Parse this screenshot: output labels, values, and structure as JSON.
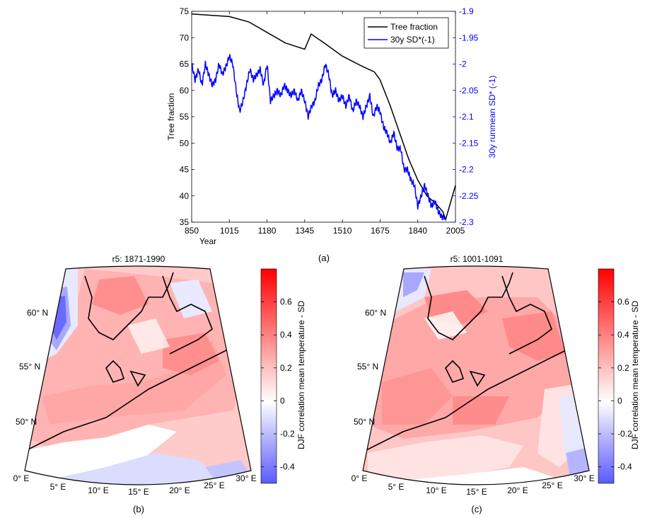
{
  "chart_data": [
    {
      "type": "line",
      "panel_label": "(a)",
      "xlabel": "Year",
      "ylabel": "Tree fraction",
      "ylabel_right": "30y runmean SD* (-1)",
      "xlim": [
        850,
        2005
      ],
      "ylim": [
        35,
        75
      ],
      "ylim_right": [
        -2.3,
        -1.9
      ],
      "x_ticks": [
        850,
        1015,
        1180,
        1345,
        1510,
        1675,
        1840,
        2005
      ],
      "y_ticks": [
        35,
        40,
        45,
        50,
        55,
        60,
        65,
        70,
        75
      ],
      "y_ticks_right": [
        -1.9,
        -1.95,
        -2,
        -2.05,
        -2.1,
        -2.15,
        -2.2,
        -2.25,
        -2.3
      ],
      "legend_position": "top-right",
      "series": [
        {
          "name": "Tree fraction",
          "color": "#000000",
          "axis": "left",
          "x": [
            850,
            1015,
            1100,
            1180,
            1260,
            1345,
            1373,
            1430,
            1510,
            1600,
            1650,
            1675,
            1720,
            1760,
            1800,
            1840,
            1880,
            1920,
            1950,
            1962,
            2005
          ],
          "y": [
            74.5,
            74.0,
            73.0,
            71.0,
            69.0,
            67.8,
            70.7,
            69.0,
            66.5,
            64.5,
            63.5,
            62.0,
            57.0,
            52.0,
            47.0,
            43.0,
            40.0,
            38.5,
            37.0,
            35.5,
            42.0
          ]
        },
        {
          "name": "30y SD*(-1)",
          "color": "#0000ff",
          "axis": "right",
          "x": [
            850,
            865,
            880,
            895,
            910,
            925,
            940,
            955,
            970,
            985,
            1000,
            1015,
            1030,
            1045,
            1060,
            1075,
            1090,
            1105,
            1120,
            1135,
            1150,
            1165,
            1180,
            1195,
            1210,
            1225,
            1240,
            1255,
            1270,
            1285,
            1300,
            1315,
            1330,
            1345,
            1360,
            1375,
            1390,
            1405,
            1420,
            1435,
            1450,
            1465,
            1480,
            1495,
            1510,
            1525,
            1540,
            1555,
            1570,
            1585,
            1600,
            1615,
            1630,
            1645,
            1660,
            1675,
            1690,
            1705,
            1720,
            1735,
            1750,
            1765,
            1780,
            1795,
            1810,
            1825,
            1840,
            1855,
            1870,
            1885,
            1900,
            1915,
            1930,
            1945,
            1960
          ],
          "y": [
            -2.0,
            -2.03,
            -2.01,
            -2.04,
            -2.0,
            -2.02,
            -2.04,
            -2.03,
            -2.0,
            -2.02,
            -2.005,
            -1.985,
            -2.0,
            -2.05,
            -2.09,
            -2.07,
            -2.04,
            -2.01,
            -2.03,
            -2.02,
            -2.01,
            -2.04,
            -2.0,
            -2.07,
            -2.06,
            -2.05,
            -2.06,
            -2.04,
            -2.05,
            -2.06,
            -2.05,
            -2.07,
            -2.05,
            -2.07,
            -2.1,
            -2.08,
            -2.07,
            -2.04,
            -2.03,
            -2.0,
            -2.02,
            -2.06,
            -2.05,
            -2.07,
            -2.06,
            -2.08,
            -2.06,
            -2.09,
            -2.07,
            -2.08,
            -2.1,
            -2.08,
            -2.06,
            -2.1,
            -2.08,
            -2.09,
            -2.12,
            -2.13,
            -2.15,
            -2.13,
            -2.16,
            -2.16,
            -2.2,
            -2.2,
            -2.22,
            -2.23,
            -2.27,
            -2.25,
            -2.23,
            -2.25,
            -2.27,
            -2.26,
            -2.28,
            -2.29,
            -2.29
          ]
        }
      ]
    },
    {
      "type": "heatmap",
      "panel_label": "(b)",
      "title": "r5: 1871-1990",
      "colorbar_label": "DJF correlation mean  temperature - SD",
      "colorbar_ticks": [
        0.6,
        0.4,
        0.2,
        0,
        -0.2,
        -0.4
      ],
      "colorbar_range": [
        -0.5,
        0.8
      ],
      "lon_labels": [
        "0° E",
        "5° E",
        "10° E",
        "15° E",
        "20° E",
        "25° E",
        "30° E"
      ],
      "lat_labels": [
        "50° N",
        "55° N",
        "60° N"
      ],
      "colorbar_labels": [
        "0.6",
        "0.4",
        "0.2",
        "0",
        "-0.2",
        "-0.4"
      ]
    },
    {
      "type": "heatmap",
      "panel_label": "(c)",
      "title": "r5: 1001-1091",
      "colorbar_label": "DJF correlation mean  temperature - SD",
      "colorbar_ticks": [
        0.6,
        0.4,
        0.2,
        0,
        -0.2,
        -0.4
      ],
      "colorbar_range": [
        -0.5,
        0.8
      ],
      "lon_labels": [
        "0° E",
        "5° E",
        "10° E",
        "15° E",
        "20° E",
        "25° E",
        "30° E"
      ],
      "lat_labels": [
        "50° N",
        "55° N",
        "60° N"
      ],
      "colorbar_labels": [
        "0.6",
        "0.4",
        "0.2",
        "0",
        "-0.2",
        "-0.4"
      ]
    }
  ]
}
